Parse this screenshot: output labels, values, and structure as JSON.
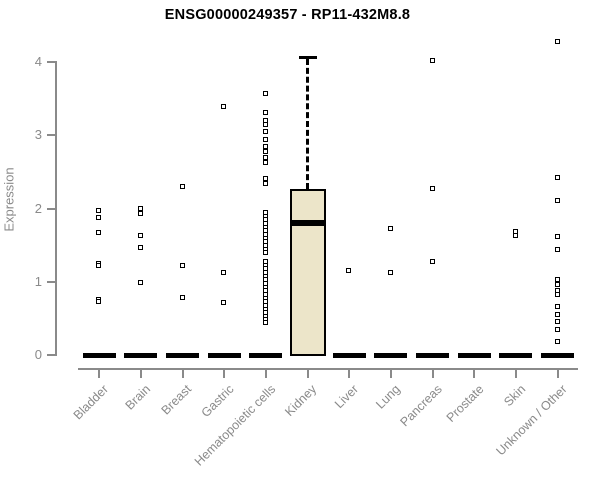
{
  "colors": {
    "axis": "#8a8a8a",
    "box_fill": "#ece5c9",
    "point": "#000000",
    "title": "#000000"
  },
  "chart_data": {
    "type": "boxplot-scatter",
    "title": "ENSG00000249357 - RP11-432M8.8",
    "xlabel": "",
    "ylabel": "Expression",
    "ylim": [
      0,
      4.4
    ],
    "yticks": [
      "0",
      "1",
      "2",
      "3",
      "4"
    ],
    "ytick_values": [
      0,
      1,
      2,
      3,
      4
    ],
    "grid": "off",
    "legend": "none",
    "categories": [
      "Bladder",
      "Brain",
      "Breast",
      "Gastric",
      "Hematopoietic cells",
      "Kidney",
      "Liver",
      "Lung",
      "Pancreas",
      "Prostate",
      "Skin",
      "Unknown / Other"
    ],
    "series": [
      {
        "name": "Bladder",
        "q1": 0,
        "median": 0,
        "q3": 0,
        "whisker_low": 0,
        "whisker_high": 0,
        "outliers": [
          1.97,
          1.87,
          1.66,
          1.24,
          1.22,
          0.75,
          0.73
        ]
      },
      {
        "name": "Brain",
        "q1": 0,
        "median": 0,
        "q3": 0,
        "whisker_low": 0,
        "whisker_high": 0,
        "outliers": [
          1.99,
          1.92,
          1.62,
          1.46,
          0.98
        ]
      },
      {
        "name": "Breast",
        "q1": 0,
        "median": 0,
        "q3": 0,
        "whisker_low": 0,
        "whisker_high": 0,
        "outliers": [
          2.3,
          1.21,
          0.78
        ]
      },
      {
        "name": "Gastric",
        "q1": 0,
        "median": 0,
        "q3": 0,
        "whisker_low": 0,
        "whisker_high": 0,
        "outliers": [
          3.39,
          1.12,
          0.71
        ]
      },
      {
        "name": "Hematopoietic cells",
        "q1": 0,
        "median": 0,
        "q3": 0,
        "whisker_low": 0,
        "whisker_high": 0,
        "outliers": [
          3.56,
          3.31,
          3.2,
          3.14,
          3.05,
          2.93,
          2.84,
          2.77,
          2.69,
          2.62,
          2.4,
          2.33,
          1.94,
          1.89,
          1.84,
          1.79,
          1.74,
          1.69,
          1.64,
          1.59,
          1.54,
          1.49,
          1.44,
          1.39,
          1.27,
          1.22,
          1.17,
          1.12,
          1.07,
          1.02,
          0.97,
          0.92,
          0.87,
          0.82,
          0.77,
          0.72,
          0.67,
          0.62,
          0.57,
          0.52,
          0.48,
          0.44
        ]
      },
      {
        "name": "Kidney",
        "q1": 0,
        "median": 1.8,
        "q3": 2.27,
        "whisker_low": 0,
        "whisker_high": 4.07,
        "outliers": []
      },
      {
        "name": "Liver",
        "q1": 0,
        "median": 0,
        "q3": 0,
        "whisker_low": 0,
        "whisker_high": 0,
        "outliers": [
          1.14
        ]
      },
      {
        "name": "Lung",
        "q1": 0,
        "median": 0,
        "q3": 0,
        "whisker_low": 0,
        "whisker_high": 0,
        "outliers": [
          1.72,
          1.12
        ]
      },
      {
        "name": "Pancreas",
        "q1": 0,
        "median": 0,
        "q3": 0,
        "whisker_low": 0,
        "whisker_high": 0,
        "outliers": [
          4.02,
          2.26,
          1.27
        ]
      },
      {
        "name": "Prostate",
        "q1": 0,
        "median": 0,
        "q3": 0,
        "whisker_low": 0,
        "whisker_high": 0,
        "outliers": []
      },
      {
        "name": "Skin",
        "q1": 0,
        "median": 0,
        "q3": 0,
        "whisker_low": 0,
        "whisker_high": 0,
        "outliers": [
          1.68,
          1.63
        ]
      },
      {
        "name": "Unknown / Other",
        "q1": 0,
        "median": 0,
        "q3": 0,
        "whisker_low": 0,
        "whisker_high": 0,
        "outliers": [
          4.27,
          2.41,
          2.1,
          1.61,
          1.44,
          1.02,
          0.95,
          0.88,
          0.82,
          0.65,
          0.55,
          0.45,
          0.34,
          0.18
        ]
      }
    ]
  }
}
